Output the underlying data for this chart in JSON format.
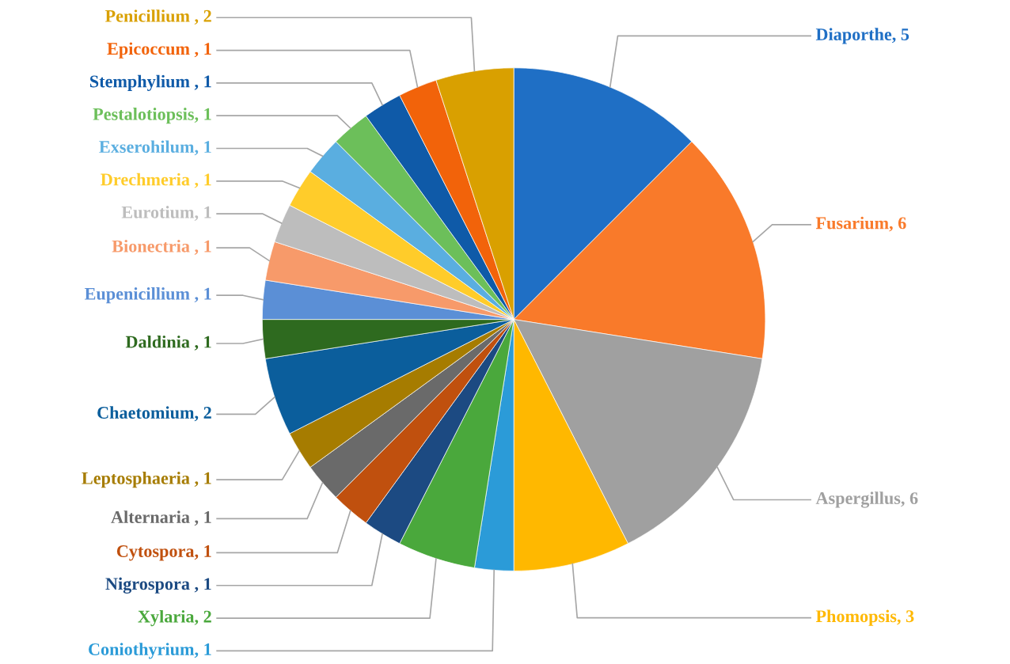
{
  "chart_data": {
    "type": "pie",
    "categories": [
      "Diaporthe",
      "Fusarium",
      "Aspergillus",
      "Phomopsis",
      "Coniothyrium",
      "Xylaria",
      "Nigrospora",
      "Cytospora",
      "Alternaria",
      "Leptosphaeria",
      "Chaetomium",
      "Daldinia",
      "Eupenicillium",
      "Bionectria",
      "Eurotium",
      "Drechmeria",
      "Exserohilum",
      "Pestalotiopsis",
      "Stemphylium",
      "Epicoccum",
      "Penicillium"
    ],
    "values": [
      5,
      6,
      6,
      3,
      1,
      2,
      1,
      1,
      1,
      1,
      2,
      1,
      1,
      1,
      1,
      1,
      1,
      1,
      1,
      1,
      2
    ],
    "value_labels": [
      ", 5",
      ", 6",
      ", 6",
      ", 3",
      ", 1",
      ", 2",
      " , 1",
      ", 1",
      " , 1",
      " , 1",
      ", 2",
      " , 1",
      " , 1",
      " , 1",
      ", 1",
      " , 1",
      ", 1",
      ", 1",
      " , 1",
      " , 1",
      " , 2"
    ],
    "colors": [
      "#1f6fc5",
      "#f97a2a",
      "#a0a0a0",
      "#ffb800",
      "#2b9bd8",
      "#4aa83c",
      "#1c4a82",
      "#c0500e",
      "#6a6a6a",
      "#a67c00",
      "#0b5e9c",
      "#2e6a1f",
      "#5b8fd6",
      "#f79a6a",
      "#bdbdbd",
      "#ffcc2a",
      "#5aaee0",
      "#6cbf5a",
      "#0f5aa8",
      "#f2630a",
      "#d9a000"
    ]
  }
}
